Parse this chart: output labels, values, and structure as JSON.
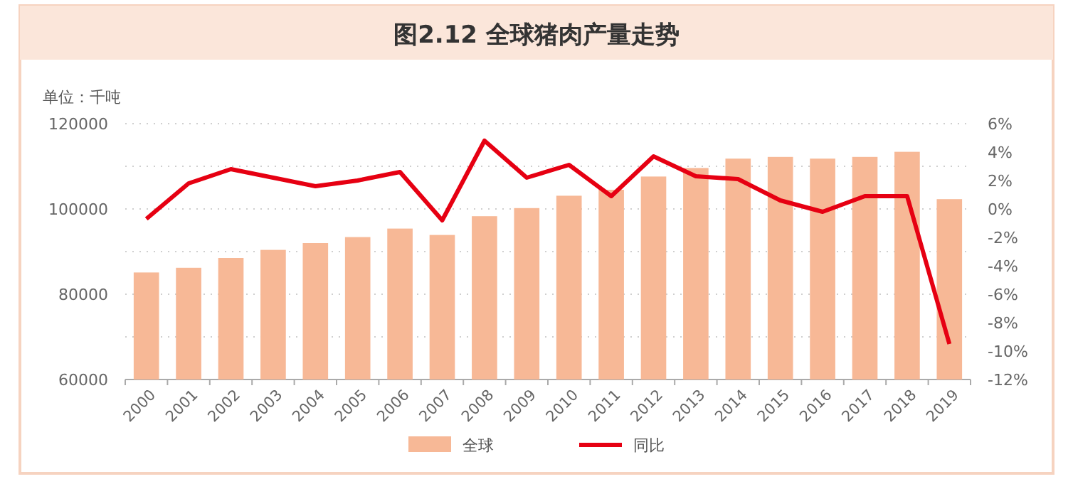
{
  "chart_data": {
    "type": "bar",
    "title": "图2.12 全球猪肉产量走势",
    "ylabel": "单位：千吨",
    "categories": [
      "2000",
      "2001",
      "2002",
      "2003",
      "2004",
      "2005",
      "2006",
      "2007",
      "2008",
      "2009",
      "2010",
      "2011",
      "2012",
      "2013",
      "2014",
      "2015",
      "2016",
      "2017",
      "2018",
      "2019"
    ],
    "series": [
      {
        "name": "全球",
        "color": "#f7b896",
        "values": [
          85100,
          86200,
          88500,
          90400,
          92000,
          93400,
          95400,
          93900,
          98300,
          100200,
          103100,
          104500,
          107600,
          109600,
          111800,
          112200,
          111800,
          112200,
          113400,
          102300
        ]
      },
      {
        "name": "同比",
        "type": "line",
        "axis": "y2",
        "color": "#e60012",
        "values": [
          -0.7,
          1.8,
          2.8,
          2.2,
          1.6,
          2.0,
          2.6,
          -0.8,
          4.8,
          2.2,
          3.1,
          0.9,
          3.7,
          2.3,
          2.1,
          0.6,
          -0.2,
          0.9,
          0.9,
          -9.5
        ]
      }
    ],
    "ylim": [
      60000,
      120000
    ],
    "yticks": [
      60000,
      {
        "value": 70000,
        "label": null
      },
      80000,
      {
        "value": 90000,
        "label": null
      },
      100000,
      {
        "value": 110000,
        "label": null
      },
      120000
    ],
    "y2lim": [
      -12,
      6
    ],
    "y2ticks": [
      {
        "value": -12,
        "label": "-12%"
      },
      {
        "value": -10,
        "label": "-10%"
      },
      {
        "value": -8,
        "label": "-8%"
      },
      {
        "value": -6,
        "label": "-6%"
      },
      {
        "value": -4,
        "label": "-4%"
      },
      {
        "value": -2,
        "label": "-2%"
      },
      {
        "value": 0,
        "label": "0%"
      },
      {
        "value": 2,
        "label": "2%"
      },
      {
        "value": 4,
        "label": "4%"
      },
      {
        "value": 6,
        "label": "6%"
      }
    ],
    "grid": "y",
    "legend": "bottom",
    "marker": "none",
    "line_style": "solid"
  }
}
